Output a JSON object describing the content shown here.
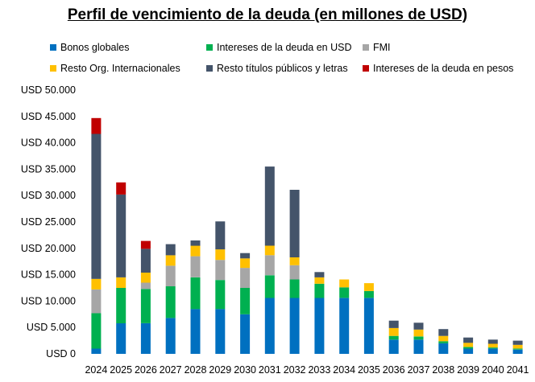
{
  "chart_data": {
    "type": "bar",
    "stacked": true,
    "title": "Perfil de vencimiento de la deuda (en millones de USD)",
    "categories": [
      "2024",
      "2025",
      "2026",
      "2027",
      "2028",
      "2029",
      "2030",
      "2031",
      "2032",
      "2033",
      "2034",
      "2035",
      "2036",
      "2037",
      "2038",
      "2039",
      "2040",
      "2041"
    ],
    "y_ticks": [
      "USD 0",
      "USD 5.000",
      "USD 10.000",
      "USD 15.000",
      "USD 20.000",
      "USD 25.000",
      "USD 30.000",
      "USD 35.000",
      "USD 40.000",
      "USD 45.000",
      "USD 50.000"
    ],
    "ylim": [
      0,
      50000
    ],
    "grid": false,
    "legend_position": "top",
    "series": [
      {
        "name": "Bonos globales",
        "color": "#0070C0",
        "values": [
          1000,
          5800,
          5800,
          6800,
          8500,
          8500,
          7500,
          10600,
          10600,
          10600,
          10600,
          10600,
          2700,
          2700,
          2000,
          1000,
          1000,
          800
        ]
      },
      {
        "name": "Intereses de la deuda en USD",
        "color": "#00B050",
        "values": [
          6700,
          6700,
          6500,
          6000,
          6000,
          5500,
          5000,
          4300,
          3500,
          2700,
          2000,
          1300,
          700,
          600,
          400,
          300,
          200,
          200
        ]
      },
      {
        "name": "FMI",
        "color": "#A6A6A6",
        "values": [
          4500,
          0,
          1200,
          3900,
          4000,
          3800,
          3800,
          3800,
          2700,
          0,
          0,
          0,
          0,
          0,
          0,
          0,
          0,
          0
        ]
      },
      {
        "name": "Resto Org. Internacionales",
        "color": "#FFC000",
        "values": [
          2000,
          2000,
          1900,
          2000,
          2000,
          2000,
          1800,
          1800,
          1500,
          1200,
          1500,
          1500,
          1500,
          1300,
          1000,
          800,
          700,
          700
        ]
      },
      {
        "name": "Resto títulos públicos y letras",
        "color": "#44546A",
        "values": [
          27500,
          15700,
          4500,
          2100,
          1000,
          5300,
          1000,
          15000,
          12800,
          1000,
          0,
          0,
          1400,
          1300,
          1300,
          1000,
          800,
          800
        ]
      },
      {
        "name": "Intereses de la deuda en pesos",
        "color": "#C00000",
        "values": [
          3000,
          2300,
          1500,
          0,
          0,
          0,
          0,
          0,
          0,
          0,
          0,
          0,
          0,
          0,
          0,
          0,
          0,
          0
        ]
      }
    ]
  }
}
